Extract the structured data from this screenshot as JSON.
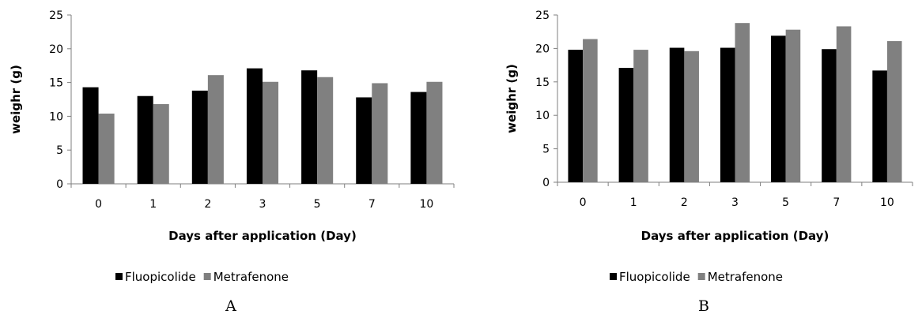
{
  "colors": {
    "fluopicolide": "#000000",
    "metrafenone": "#808080",
    "axis": "#7f7f7f"
  },
  "chart_data": [
    {
      "type": "bar",
      "panel_label": "A",
      "categories": [
        "0",
        "1",
        "2",
        "3",
        "5",
        "7",
        "10"
      ],
      "series": [
        {
          "name": "Fluopicolide",
          "values": [
            14.3,
            13.0,
            13.8,
            17.1,
            16.8,
            12.8,
            13.6
          ]
        },
        {
          "name": "Metrafenone",
          "values": [
            10.4,
            11.8,
            16.1,
            15.1,
            15.8,
            14.9,
            15.1
          ]
        }
      ],
      "xlabel": "Days after application (Day)",
      "ylabel": "weighr (g)",
      "ylim": [
        0,
        25
      ],
      "yticks": [
        "0",
        "5",
        "10",
        "15",
        "20",
        "25"
      ],
      "grid": false,
      "legend": "bottom"
    },
    {
      "type": "bar",
      "panel_label": "B",
      "categories": [
        "0",
        "1",
        "2",
        "3",
        "5",
        "7",
        "10"
      ],
      "series": [
        {
          "name": "Fluopicolide",
          "values": [
            19.8,
            17.1,
            20.1,
            20.1,
            21.9,
            19.9,
            16.7
          ]
        },
        {
          "name": "Metrafenone",
          "values": [
            21.4,
            19.8,
            19.6,
            23.8,
            22.8,
            23.3,
            21.1
          ]
        }
      ],
      "xlabel": "Days after application (Day)",
      "ylabel": "weighr (g)",
      "ylim": [
        0,
        25
      ],
      "yticks": [
        "0",
        "5",
        "10",
        "15",
        "20",
        "25"
      ],
      "grid": false,
      "legend": "bottom"
    }
  ]
}
